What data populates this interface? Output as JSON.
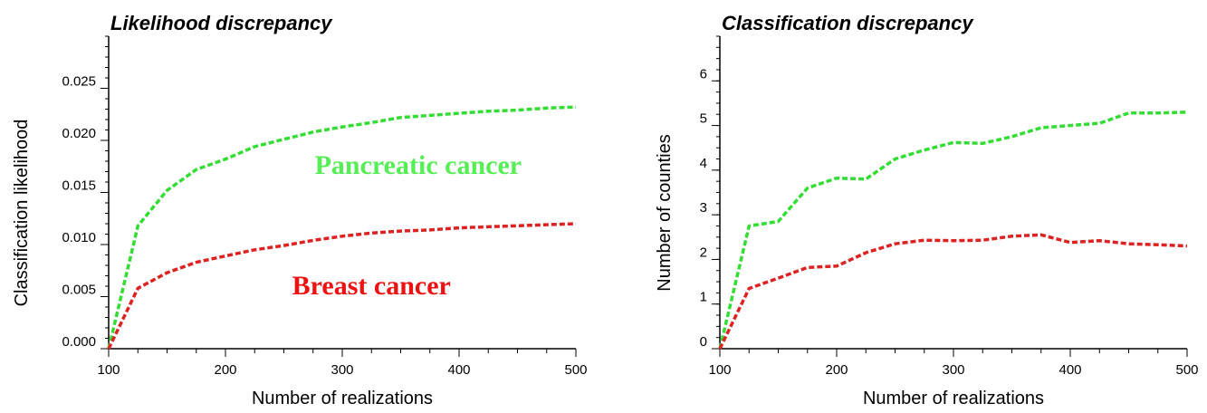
{
  "chart_data": [
    {
      "type": "line",
      "title": "Likelihood discrepancy",
      "xlabel": "Number of realizations",
      "ylabel": "Classification likelihood",
      "xlim": [
        100,
        500
      ],
      "ylim": [
        0,
        0.03
      ],
      "x_ticks": [
        100,
        200,
        300,
        400,
        500
      ],
      "x_tick_labels": [
        "100",
        "200",
        "300",
        "400",
        "500"
      ],
      "y_ticks": [
        0,
        0.005,
        0.01,
        0.015,
        0.02,
        0.025
      ],
      "y_tick_labels": [
        "0.000",
        "0.005",
        "0.010",
        "0.015",
        "0.020",
        "0.025"
      ],
      "y_minor_step": 0.001,
      "grid": false,
      "x": [
        100,
        125,
        150,
        175,
        200,
        225,
        250,
        275,
        300,
        325,
        350,
        375,
        400,
        425,
        450,
        475,
        500
      ],
      "series": [
        {
          "color": "#33dd33",
          "values": [
            0.0,
            0.0118,
            0.0152,
            0.0172,
            0.0182,
            0.0194,
            0.0201,
            0.0208,
            0.0213,
            0.0217,
            0.0222,
            0.0224,
            0.0226,
            0.0228,
            0.0229,
            0.0231,
            0.0232
          ]
        },
        {
          "color": "#dd2222",
          "values": [
            0.0,
            0.0058,
            0.0073,
            0.0083,
            0.0089,
            0.0095,
            0.0099,
            0.0104,
            0.0108,
            0.0111,
            0.0113,
            0.0114,
            0.0116,
            0.0117,
            0.0118,
            0.0119,
            0.012
          ]
        }
      ],
      "annotations": [
        {
          "text": "Pancreatic cancer",
          "color": "#55ee55",
          "x": 365,
          "y": 0.0168
        },
        {
          "text": "Breast cancer",
          "color": "#ee1111",
          "x": 325,
          "y": 0.0052
        }
      ]
    },
    {
      "type": "line",
      "title": "Classification discrepancy",
      "xlabel": "Number of realizations",
      "ylabel": "Number of counties",
      "xlim": [
        100,
        500
      ],
      "ylim": [
        0,
        7
      ],
      "x_ticks": [
        100,
        200,
        300,
        400,
        500
      ],
      "x_tick_labels": [
        "100",
        "200",
        "300",
        "400",
        "500"
      ],
      "y_ticks": [
        0,
        1,
        2,
        3,
        4,
        5,
        6
      ],
      "y_tick_labels": [
        "0",
        "1",
        "2",
        "3",
        "4",
        "5",
        "6"
      ],
      "y_minor_step": 0.25,
      "grid": false,
      "x": [
        100,
        125,
        150,
        175,
        200,
        225,
        250,
        275,
        300,
        325,
        350,
        375,
        400,
        425,
        450,
        475,
        500
      ],
      "series": [
        {
          "color": "#33dd33",
          "values": [
            0.0,
            2.75,
            2.85,
            3.6,
            3.82,
            3.8,
            4.25,
            4.45,
            4.62,
            4.6,
            4.75,
            4.95,
            5.0,
            5.05,
            5.28,
            5.28,
            5.3
          ]
        },
        {
          "color": "#dd2222",
          "values": [
            0.0,
            1.35,
            1.58,
            1.82,
            1.85,
            2.15,
            2.35,
            2.43,
            2.42,
            2.43,
            2.52,
            2.55,
            2.38,
            2.42,
            2.35,
            2.33,
            2.3
          ]
        }
      ]
    }
  ]
}
